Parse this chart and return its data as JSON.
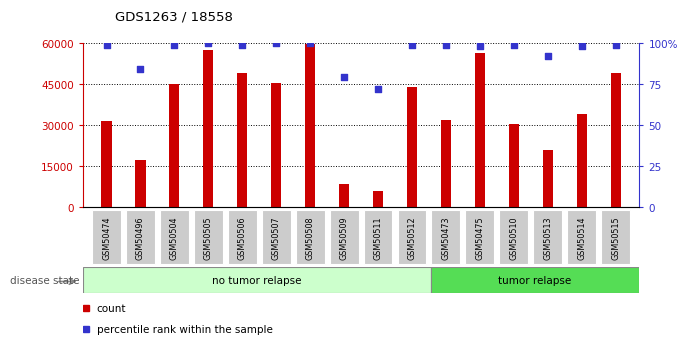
{
  "title": "GDS1263 / 18558",
  "samples": [
    "GSM50474",
    "GSM50496",
    "GSM50504",
    "GSM50505",
    "GSM50506",
    "GSM50507",
    "GSM50508",
    "GSM50509",
    "GSM50511",
    "GSM50512",
    "GSM50473",
    "GSM50475",
    "GSM50510",
    "GSM50513",
    "GSM50514",
    "GSM50515"
  ],
  "counts": [
    31500,
    17000,
    45000,
    57500,
    49000,
    45500,
    59500,
    8500,
    6000,
    44000,
    32000,
    56500,
    30500,
    21000,
    34000,
    49000
  ],
  "percentiles": [
    99,
    84,
    99,
    100,
    99,
    100,
    100,
    79,
    72,
    99,
    99,
    98,
    99,
    92,
    98,
    99
  ],
  "bar_color": "#cc0000",
  "dot_color": "#3333cc",
  "ylim_left": [
    0,
    60000
  ],
  "yticks_left": [
    0,
    15000,
    30000,
    45000,
    60000
  ],
  "ytick_labels_left": [
    "0",
    "15000",
    "30000",
    "45000",
    "60000"
  ],
  "yticks_right_pct": [
    0,
    25,
    50,
    75,
    100
  ],
  "ytick_labels_right": [
    "0",
    "25",
    "50",
    "75",
    "100%"
  ],
  "group1_label": "no tumor relapse",
  "group2_label": "tumor relapse",
  "group1_count": 10,
  "group2_count": 6,
  "group1_color": "#ccffcc",
  "group2_color": "#55dd55",
  "disease_label": "disease state",
  "legend_count_label": "count",
  "legend_pct_label": "percentile rank within the sample",
  "tick_bg_color": "#cccccc",
  "bar_width": 0.3
}
